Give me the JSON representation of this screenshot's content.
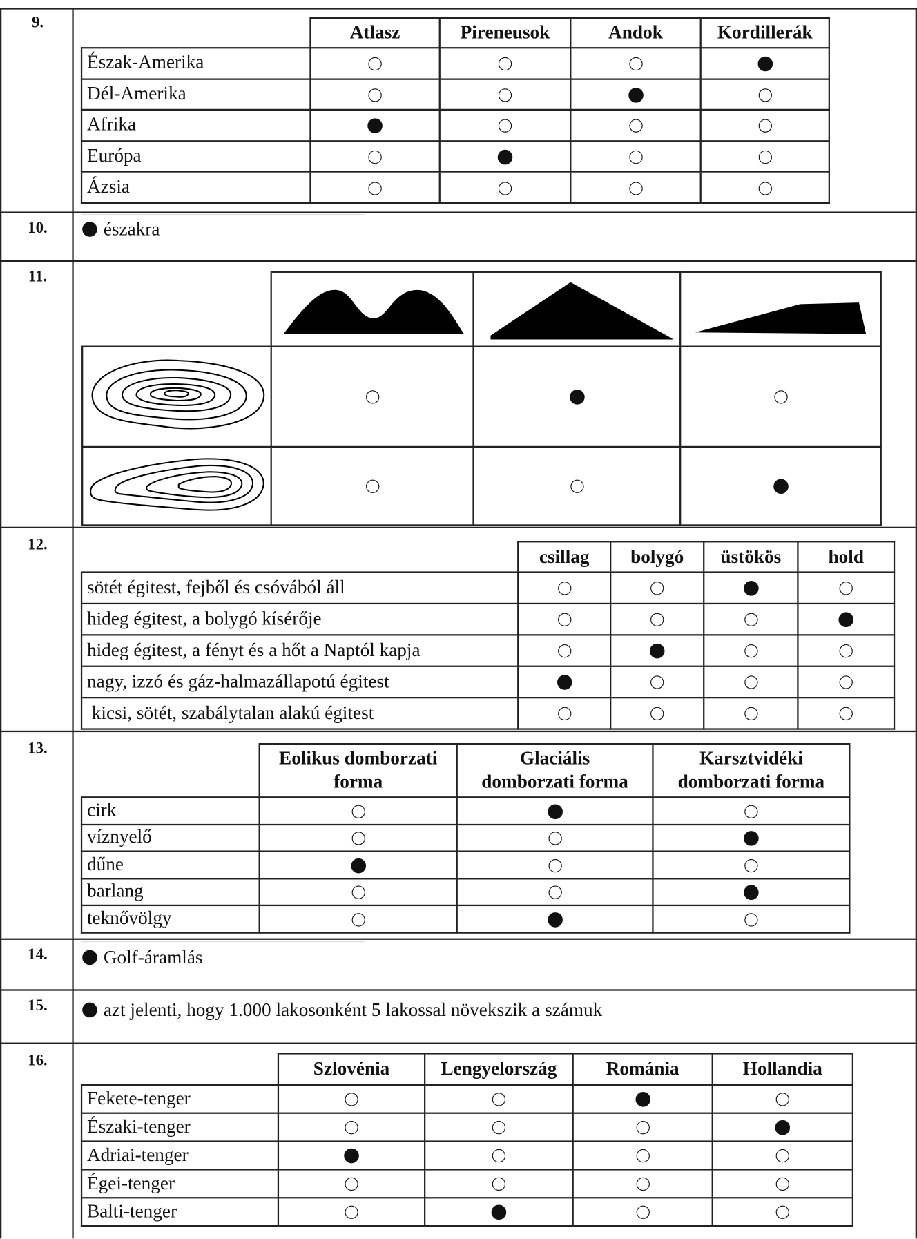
{
  "items": [
    {
      "number": "9.",
      "columns": [
        "Atlasz",
        "Pireneusok",
        "Andok",
        "Kordillerák"
      ],
      "rows": [
        {
          "label": "Észak-Amerika",
          "marks": [
            false,
            false,
            false,
            true
          ]
        },
        {
          "label": "Dél-Amerika",
          "marks": [
            false,
            false,
            true,
            false
          ]
        },
        {
          "label": "Afrika",
          "marks": [
            true,
            false,
            false,
            false
          ]
        },
        {
          "label": "Európa",
          "marks": [
            false,
            true,
            false,
            false
          ]
        },
        {
          "label": "Ázsia",
          "marks": [
            false,
            false,
            false,
            false
          ]
        }
      ]
    },
    {
      "number": "10.",
      "answer": "északra"
    },
    {
      "number": "11.",
      "rows": [
        {
          "marks": [
            false,
            true,
            false
          ]
        },
        {
          "marks": [
            false,
            false,
            true
          ]
        }
      ]
    },
    {
      "number": "12.",
      "columns": [
        "csillag",
        "bolygó",
        "üstökös",
        "hold"
      ],
      "rows": [
        {
          "label": "sötét égitest, fejből és csóvából áll",
          "marks": [
            false,
            false,
            true,
            false
          ]
        },
        {
          "label": "hideg égitest, a bolygó kísérője",
          "marks": [
            false,
            false,
            false,
            true
          ]
        },
        {
          "label": "hideg égitest, a fényt és a hőt a Naptól kapja",
          "marks": [
            false,
            true,
            false,
            false
          ]
        },
        {
          "label": "nagy, izzó és gáz-halmazállapotú égitest",
          "marks": [
            true,
            false,
            false,
            false
          ]
        },
        {
          "label": "kicsi, sötét, szabálytalan alakú égitest",
          "marks": [
            false,
            false,
            false,
            false
          ]
        }
      ]
    },
    {
      "number": "13.",
      "columns": [
        "Eolikus domborzati\nforma",
        "Glaciális\ndomborzati forma",
        "Karsztvidéki\ndomborzati forma"
      ],
      "rows": [
        {
          "label": "cirk",
          "marks": [
            false,
            true,
            false
          ]
        },
        {
          "label": "víznyelő",
          "marks": [
            false,
            false,
            true
          ]
        },
        {
          "label": "dűne",
          "marks": [
            true,
            false,
            false
          ]
        },
        {
          "label": "barlang",
          "marks": [
            false,
            false,
            true
          ]
        },
        {
          "label": "teknővölgy",
          "marks": [
            false,
            true,
            false
          ]
        }
      ]
    },
    {
      "number": "14.",
      "answer": "Golf-áramlás"
    },
    {
      "number": "15.",
      "answer": "azt jelenti, hogy 1.000 lakosonként 5 lakossal növekszik a számuk"
    },
    {
      "number": "16.",
      "columns": [
        "Szlovénia",
        "Lengyelország",
        "Románia",
        "Hollandia"
      ],
      "rows": [
        {
          "label": "Fekete-tenger",
          "marks": [
            false,
            false,
            true,
            false
          ]
        },
        {
          "label": "Északi-tenger",
          "marks": [
            false,
            false,
            false,
            true
          ]
        },
        {
          "label": "Adriai-tenger",
          "marks": [
            true,
            false,
            false,
            false
          ]
        },
        {
          "label": "Égei-tenger",
          "marks": [
            false,
            false,
            false,
            false
          ]
        },
        {
          "label": "Balti-tenger",
          "marks": [
            false,
            true,
            false,
            false
          ]
        }
      ]
    }
  ]
}
